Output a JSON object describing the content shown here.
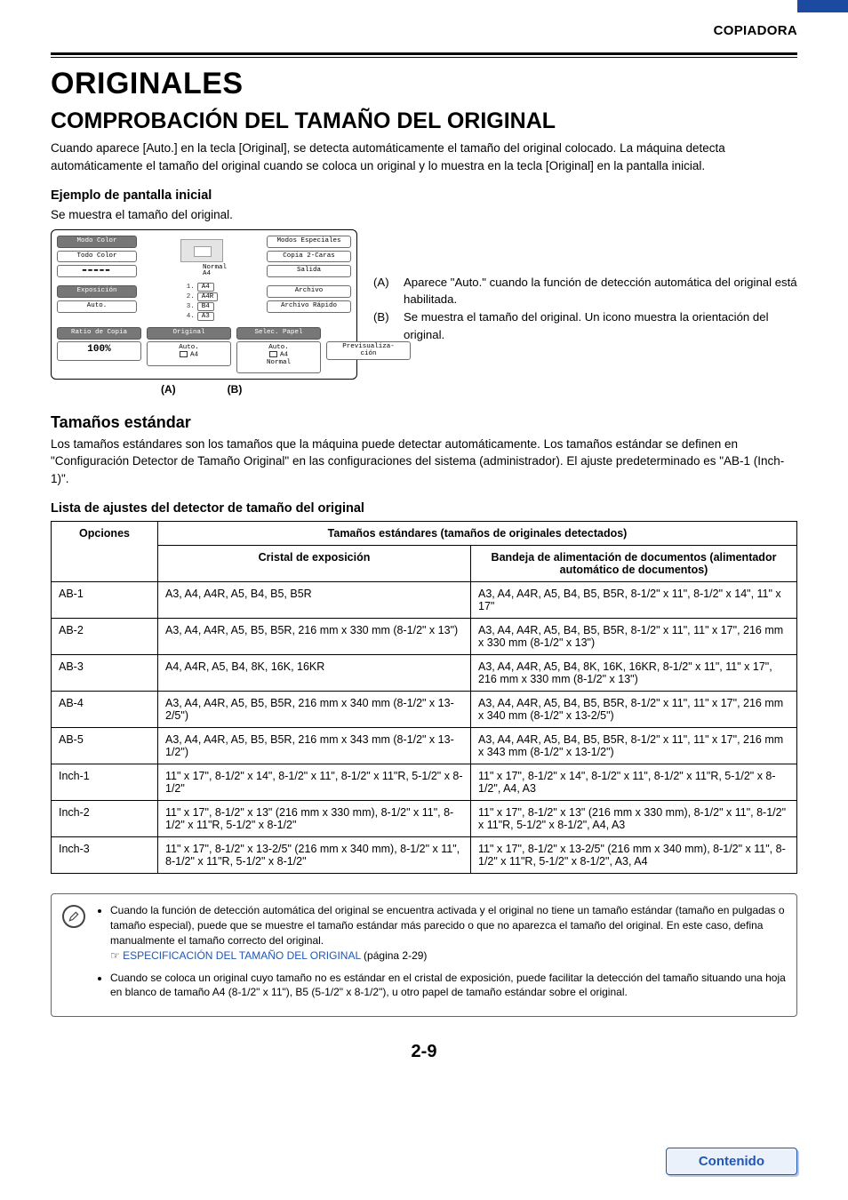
{
  "doc": {
    "header": "COPIADORA",
    "h1": "ORIGINALES",
    "h2": "COMPROBACIÓN DEL TAMAÑO DEL ORIGINAL",
    "intro": "Cuando aparece [Auto.] en la tecla [Original], se detecta automáticamente el tamaño del original colocado. La máquina detecta automáticamente el tamaño del original cuando se coloca un original y lo muestra en la tecla [Original] en la pantalla inicial.",
    "example_head": "Ejemplo de pantalla inicial",
    "example_sub": "Se muestra el tamaño del original.",
    "sizes_head": "Tamaños estándar",
    "sizes_body": "Los tamaños estándares son los tamaños que la máquina puede detectar automáticamente. Los tamaños estándar se definen en \"Configuración Detector de Tamaño Original\" en las configuraciones del sistema (administrador). El ajuste predeterminado es \"AB-1 (Inch-1)\".",
    "list_head": "Lista de ajustes del detector de tamaño del original",
    "page_number": "2-9",
    "contents": "Contenido"
  },
  "notesA": "Aparece \"Auto.\" cuando la función de detección automática del original está habilitada.",
  "notesB": "Se muestra el tamaño del original. Un icono muestra la orientación del original.",
  "markerA": "(A)",
  "markerB": "(B)",
  "lcd": {
    "modo_color": "Modo Color",
    "todo_color": "Todo Color",
    "exposicion": "Exposición",
    "auto": "Auto.",
    "ratio_label": "Ratio de Copia",
    "ratio_value": "100%",
    "normal": "Normal",
    "a4": "A4",
    "papers": [
      {
        "n": "1.",
        "label": "A4"
      },
      {
        "n": "2.",
        "label": "A4R"
      },
      {
        "n": "3.",
        "label": "B4"
      },
      {
        "n": "4.",
        "label": "A3"
      }
    ],
    "original": "Original",
    "orig_auto": "Auto.",
    "orig_a4": "A4",
    "selec_papel": "Selec. Papel",
    "sp_auto": "Auto.",
    "sp_a4": "A4",
    "sp_normal": "Normal",
    "modos_especiales": "Modos Especiales",
    "copia_2caras": "Copia 2-Caras",
    "salida": "Salida",
    "archivo": "Archivo",
    "archivo_rapido": "Archivo Rápido",
    "previsualizacion": "Previsualiza-\nción"
  },
  "table": {
    "head_opciones": "Opciones",
    "head_group": "Tamaños estándares (tamaños de originales detectados)",
    "head_glass": "Cristal de exposición",
    "head_feeder": "Bandeja de alimentación de documentos (alimentador automático de documentos)",
    "rows": [
      {
        "opt": "AB-1",
        "glass": "A3, A4, A4R, A5, B4, B5, B5R",
        "feeder": "A3, A4, A4R, A5, B4, B5, B5R, 8-1/2\" x 11\", 8-1/2\" x 14\", 11\" x 17\""
      },
      {
        "opt": "AB-2",
        "glass": "A3, A4, A4R, A5, B5, B5R, 216 mm x 330 mm (8-1/2\" x 13\")",
        "feeder": "A3, A4, A4R, A5, B4, B5, B5R, 8-1/2\" x 11\", 11\" x 17\", 216 mm x 330 mm (8-1/2\" x 13\")"
      },
      {
        "opt": "AB-3",
        "glass": "A4, A4R, A5, B4, 8K, 16K, 16KR",
        "feeder": "A3, A4, A4R, A5, B4, 8K, 16K, 16KR, 8-1/2\" x 11\", 11\" x 17\", 216 mm x 330 mm (8-1/2\" x 13\")"
      },
      {
        "opt": "AB-4",
        "glass": "A3, A4, A4R, A5, B5, B5R, 216 mm x 340 mm (8-1/2\" x 13-2/5\")",
        "feeder": "A3, A4, A4R, A5, B4, B5, B5R, 8-1/2\" x 11\", 11\" x 17\", 216 mm x 340 mm (8-1/2\" x 13-2/5\")"
      },
      {
        "opt": "AB-5",
        "glass": "A3, A4, A4R, A5, B5, B5R, 216 mm x 343 mm (8-1/2\" x 13-1/2\")",
        "feeder": "A3, A4, A4R, A5, B4, B5, B5R, 8-1/2\" x 11\", 11\" x 17\", 216 mm x 343 mm (8-1/2\" x 13-1/2\")"
      },
      {
        "opt": "Inch-1",
        "glass": "11\" x 17\", 8-1/2\" x 14\", 8-1/2\" x 11\", 8-1/2\" x 11\"R, 5-1/2\" x 8-1/2\"",
        "feeder": "11\" x 17\", 8-1/2\" x 14\", 8-1/2\" x 11\", 8-1/2\" x 11\"R, 5-1/2\" x 8-1/2\", A4, A3"
      },
      {
        "opt": "Inch-2",
        "glass": "11\" x 17\", 8-1/2\" x 13\" (216 mm x 330 mm), 8-1/2\" x 11\", 8-1/2\" x 11\"R, 5-1/2\" x 8-1/2\"",
        "feeder": "11\" x 17\", 8-1/2\" x 13\" (216 mm x 330 mm), 8-1/2\" x 11\", 8-1/2\" x 11\"R, 5-1/2\" x 8-1/2\", A4, A3"
      },
      {
        "opt": "Inch-3",
        "glass": "11\" x 17\", 8-1/2\" x 13-2/5\"  (216 mm x 340 mm), 8-1/2\" x 11\", 8-1/2\" x 11\"R, 5-1/2\" x 8-1/2\"",
        "feeder": "11\" x 17\", 8-1/2\" x 13-2/5\" (216 mm x 340 mm), 8-1/2\" x 11\", 8-1/2\" x 11\"R, 5-1/2\" x 8-1/2\", A3, A4"
      }
    ]
  },
  "footnotes": {
    "n1a": "Cuando la función de detección automática del original se encuentra activada y el original no tiene un tamaño estándar (tamaño en pulgadas o tamaño especial), puede que se muestre el tamaño estándar más parecido o que no aparezca el tamaño del original. En este caso, defina manualmente el tamaño correcto del original.",
    "n1b_link": "ESPECIFICACIÓN DEL TAMAÑO DEL ORIGINAL",
    "n1b_page": " (página 2-29)",
    "n2": "Cuando se coloca un original cuyo tamaño no es estándar en el cristal de exposición, puede facilitar la detección del tamaño situando una hoja en blanco de tamaño A4 (8-1/2\" x 11\"), B5 (5-1/2\" x 8-1/2\"), u otro papel de tamaño estándar sobre el original."
  }
}
